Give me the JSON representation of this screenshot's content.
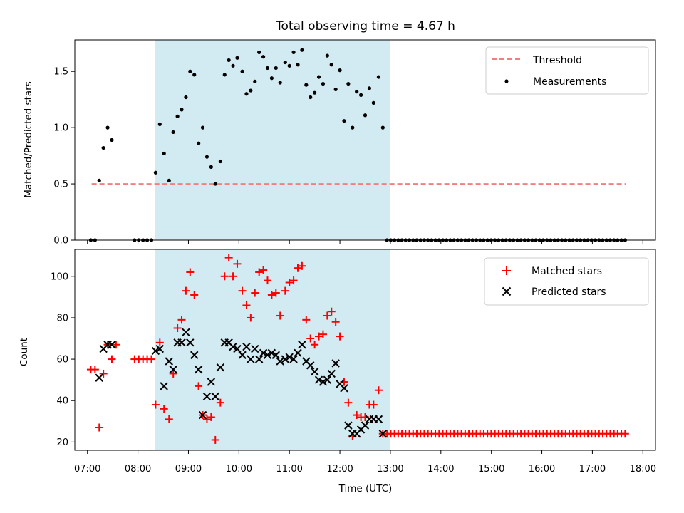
{
  "title": "Total observing time = 4.67 h",
  "x_axis": {
    "label": "Time (UTC)",
    "domain": [
      "06:45",
      "18:15"
    ],
    "tick_labels": [
      "07:00",
      "08:00",
      "09:00",
      "10:00",
      "11:00",
      "12:00",
      "13:00",
      "14:00",
      "15:00",
      "16:00",
      "17:00",
      "18:00"
    ]
  },
  "shaded_interval": {
    "start": "08:20",
    "end": "13:00",
    "color": "#add8e6"
  },
  "chart_data": [
    {
      "type": "scatter",
      "ylabel": "Matched/Predicted stars",
      "ylim": [
        0,
        1.78
      ],
      "yticks": [
        0.0,
        0.5,
        1.0,
        1.5
      ],
      "ytick_labels": [
        "0.0",
        "0.5",
        "1.0",
        "1.5"
      ],
      "legend_position": "top-right",
      "threshold": {
        "name": "Threshold",
        "value": 0.5,
        "x_range": [
          "07:05",
          "17:40"
        ],
        "color": "#f08080"
      },
      "series": [
        {
          "name": "Measurements",
          "color": "#000000",
          "marker": "dot",
          "points": [
            [
              "07:04",
              0.0
            ],
            [
              "07:09",
              0.0
            ],
            [
              "07:14",
              0.53
            ],
            [
              "07:19",
              0.82
            ],
            [
              "07:24",
              1.0
            ],
            [
              "07:29",
              0.89
            ],
            [
              "07:56",
              0.0
            ],
            [
              "08:01",
              0.0
            ],
            [
              "08:06",
              0.0
            ],
            [
              "08:11",
              0.0
            ],
            [
              "08:16",
              0.0
            ],
            [
              "08:21",
              0.6
            ],
            [
              "08:26",
              1.03
            ],
            [
              "08:31",
              0.77
            ],
            [
              "08:37",
              0.53
            ],
            [
              "08:42",
              0.96
            ],
            [
              "08:47",
              1.1
            ],
            [
              "08:52",
              1.16
            ],
            [
              "08:57",
              1.27
            ],
            [
              "09:02",
              1.5
            ],
            [
              "09:07",
              1.47
            ],
            [
              "09:12",
              0.86
            ],
            [
              "09:17",
              1.0
            ],
            [
              "09:22",
              0.74
            ],
            [
              "09:27",
              0.65
            ],
            [
              "09:32",
              0.5
            ],
            [
              "09:38",
              0.7
            ],
            [
              "09:43",
              1.47
            ],
            [
              "09:48",
              1.6
            ],
            [
              "09:53",
              1.55
            ],
            [
              "09:58",
              1.62
            ],
            [
              "10:04",
              1.5
            ],
            [
              "10:09",
              1.3
            ],
            [
              "10:14",
              1.33
            ],
            [
              "10:19",
              1.41
            ],
            [
              "10:24",
              1.67
            ],
            [
              "10:29",
              1.63
            ],
            [
              "10:34",
              1.53
            ],
            [
              "10:39",
              1.44
            ],
            [
              "10:44",
              1.53
            ],
            [
              "10:49",
              1.4
            ],
            [
              "10:55",
              1.58
            ],
            [
              "11:00",
              1.55
            ],
            [
              "11:05",
              1.67
            ],
            [
              "11:10",
              1.56
            ],
            [
              "11:15",
              1.69
            ],
            [
              "11:20",
              1.38
            ],
            [
              "11:25",
              1.27
            ],
            [
              "11:30",
              1.31
            ],
            [
              "11:35",
              1.45
            ],
            [
              "11:40",
              1.39
            ],
            [
              "11:45",
              1.64
            ],
            [
              "11:50",
              1.56
            ],
            [
              "11:55",
              1.34
            ],
            [
              "12:00",
              1.51
            ],
            [
              "12:05",
              1.06
            ],
            [
              "12:10",
              1.39
            ],
            [
              "12:15",
              1.0
            ],
            [
              "12:20",
              1.32
            ],
            [
              "12:25",
              1.29
            ],
            [
              "12:30",
              1.11
            ],
            [
              "12:35",
              1.35
            ],
            [
              "12:40",
              1.22
            ],
            [
              "12:46",
              1.45
            ],
            [
              "12:51",
              1.0
            ]
          ],
          "zero_run": {
            "start": "12:56",
            "end": "17:40",
            "step_minutes": 4.42,
            "value": 0.0
          }
        }
      ]
    },
    {
      "type": "scatter",
      "ylabel": "Count",
      "ylim": [
        16,
        113
      ],
      "yticks": [
        20,
        40,
        60,
        80,
        100
      ],
      "ytick_labels": [
        "20",
        "40",
        "60",
        "80",
        "100"
      ],
      "legend_position": "top-right",
      "series": [
        {
          "name": "Matched stars",
          "color": "#ff0000",
          "marker": "plus",
          "points": [
            [
              "07:04",
              55
            ],
            [
              "07:09",
              55
            ],
            [
              "07:14",
              27
            ],
            [
              "07:19",
              53
            ],
            [
              "07:24",
              67
            ],
            [
              "07:29",
              60
            ],
            [
              "07:34",
              67
            ],
            [
              "07:56",
              60
            ],
            [
              "08:01",
              60
            ],
            [
              "08:06",
              60
            ],
            [
              "08:11",
              60
            ],
            [
              "08:16",
              60
            ],
            [
              "08:21",
              38
            ],
            [
              "08:26",
              68
            ],
            [
              "08:31",
              36
            ],
            [
              "08:37",
              31
            ],
            [
              "08:42",
              53
            ],
            [
              "08:47",
              75
            ],
            [
              "08:52",
              79
            ],
            [
              "08:57",
              93
            ],
            [
              "09:02",
              102
            ],
            [
              "09:07",
              91
            ],
            [
              "09:12",
              47
            ],
            [
              "09:17",
              33
            ],
            [
              "09:22",
              31
            ],
            [
              "09:27",
              32
            ],
            [
              "09:32",
              21
            ],
            [
              "09:38",
              39
            ],
            [
              "09:43",
              100
            ],
            [
              "09:48",
              109
            ],
            [
              "09:53",
              100
            ],
            [
              "09:58",
              106
            ],
            [
              "10:04",
              93
            ],
            [
              "10:09",
              86
            ],
            [
              "10:14",
              80
            ],
            [
              "10:19",
              92
            ],
            [
              "10:24",
              102
            ],
            [
              "10:29",
              103
            ],
            [
              "10:34",
              98
            ],
            [
              "10:39",
              91
            ],
            [
              "10:44",
              92
            ],
            [
              "10:49",
              81
            ],
            [
              "10:55",
              93
            ],
            [
              "11:00",
              97
            ],
            [
              "11:05",
              98
            ],
            [
              "11:10",
              104
            ],
            [
              "11:15",
              105
            ],
            [
              "11:20",
              79
            ],
            [
              "11:25",
              70
            ],
            [
              "11:30",
              67
            ],
            [
              "11:35",
              71
            ],
            [
              "11:40",
              72
            ],
            [
              "11:45",
              81
            ],
            [
              "11:50",
              83
            ],
            [
              "11:55",
              78
            ],
            [
              "12:00",
              71
            ],
            [
              "12:05",
              49
            ],
            [
              "12:10",
              39
            ],
            [
              "12:15",
              23
            ],
            [
              "12:20",
              33
            ],
            [
              "12:25",
              32
            ],
            [
              "12:30",
              32
            ],
            [
              "12:35",
              38
            ],
            [
              "12:40",
              38
            ],
            [
              "12:46",
              45
            ],
            [
              "12:51",
              24
            ]
          ],
          "zero_run": {
            "start": "12:56",
            "end": "17:40",
            "step_minutes": 4.42,
            "value": 24
          }
        },
        {
          "name": "Predicted stars",
          "color": "#000000",
          "marker": "x",
          "points": [
            [
              "07:14",
              51
            ],
            [
              "07:19",
              65
            ],
            [
              "07:24",
              67
            ],
            [
              "07:29",
              67
            ],
            [
              "08:21",
              64
            ],
            [
              "08:26",
              65
            ],
            [
              "08:31",
              47
            ],
            [
              "08:37",
              59
            ],
            [
              "08:42",
              55
            ],
            [
              "08:47",
              68
            ],
            [
              "08:52",
              68
            ],
            [
              "08:57",
              73
            ],
            [
              "09:02",
              68
            ],
            [
              "09:07",
              62
            ],
            [
              "09:12",
              55
            ],
            [
              "09:17",
              33
            ],
            [
              "09:22",
              42
            ],
            [
              "09:27",
              49
            ],
            [
              "09:32",
              42
            ],
            [
              "09:38",
              56
            ],
            [
              "09:43",
              68
            ],
            [
              "09:48",
              68
            ],
            [
              "09:53",
              66
            ],
            [
              "09:58",
              65
            ],
            [
              "10:04",
              62
            ],
            [
              "10:09",
              66
            ],
            [
              "10:14",
              60
            ],
            [
              "10:19",
              65
            ],
            [
              "10:24",
              60
            ],
            [
              "10:29",
              63
            ],
            [
              "10:34",
              62
            ],
            [
              "10:39",
              63
            ],
            [
              "10:44",
              62
            ],
            [
              "10:49",
              59
            ],
            [
              "10:55",
              60
            ],
            [
              "11:00",
              61
            ],
            [
              "11:05",
              60
            ],
            [
              "11:10",
              63
            ],
            [
              "11:15",
              67
            ],
            [
              "11:20",
              59
            ],
            [
              "11:25",
              57
            ],
            [
              "11:30",
              54
            ],
            [
              "11:35",
              50
            ],
            [
              "11:40",
              49
            ],
            [
              "11:45",
              50
            ],
            [
              "11:50",
              53
            ],
            [
              "11:55",
              58
            ],
            [
              "12:00",
              48
            ],
            [
              "12:05",
              46
            ],
            [
              "12:10",
              28
            ],
            [
              "12:15",
              24
            ],
            [
              "12:20",
              24
            ],
            [
              "12:25",
              26
            ],
            [
              "12:30",
              28
            ],
            [
              "12:35",
              31
            ],
            [
              "12:40",
              31
            ],
            [
              "12:46",
              31
            ],
            [
              "12:51",
              24
            ]
          ]
        }
      ]
    }
  ]
}
